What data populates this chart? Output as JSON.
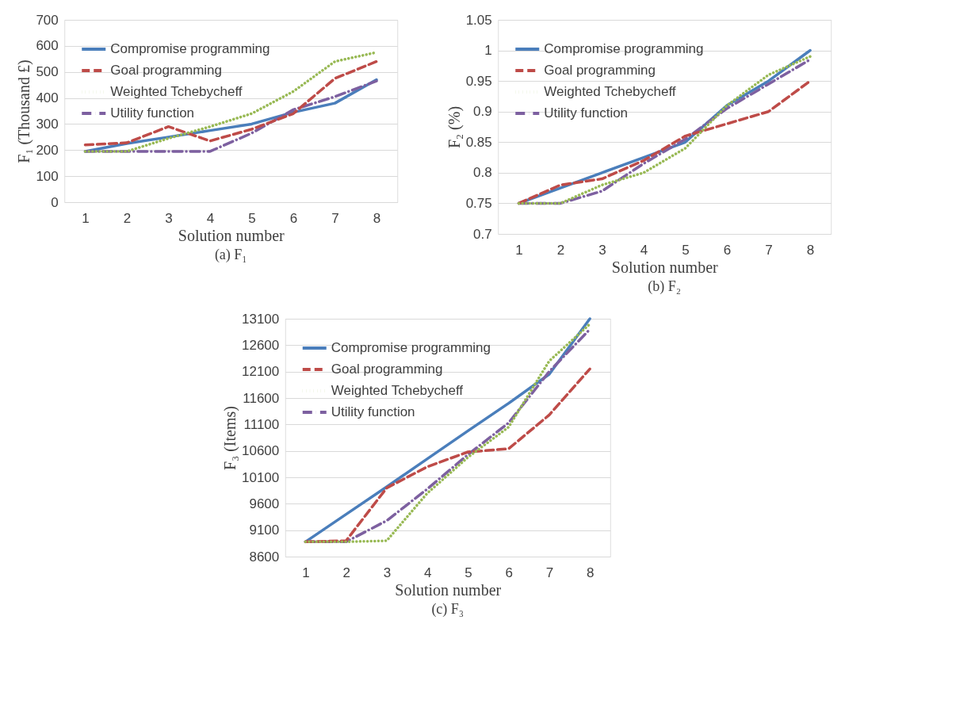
{
  "chart_data": [
    {
      "type": "line",
      "title": "(a) F₁",
      "xlabel": "Solution number",
      "ylabel": "F₁ (Thousand £)",
      "categories": [
        "1",
        "2",
        "3",
        "4",
        "5",
        "6",
        "7",
        "8"
      ],
      "ylim": [
        0,
        700
      ],
      "yticks": [
        0,
        100,
        200,
        300,
        400,
        500,
        600,
        700
      ],
      "grid": "y",
      "legend": "top left",
      "marker": "none",
      "series": [
        {
          "name": "Compromise programming",
          "color": "#4a7ebb",
          "line_style": "solid",
          "values": [
            195,
            225,
            250,
            275,
            300,
            345,
            380,
            470
          ]
        },
        {
          "name": "Goal programming",
          "color": "#be4b48",
          "line_style": "dashed",
          "values": [
            220,
            228,
            290,
            235,
            280,
            340,
            475,
            540
          ]
        },
        {
          "name": "Weighted Tchebycheff",
          "color": "#98b954",
          "line_style": "dotted",
          "values": [
            195,
            195,
            245,
            290,
            340,
            425,
            540,
            575
          ]
        },
        {
          "name": "Utility function",
          "color": "#7d60a0",
          "line_style": "dashdot",
          "values": [
            195,
            195,
            195,
            195,
            265,
            355,
            405,
            465
          ]
        }
      ]
    },
    {
      "type": "line",
      "title": "(b) F₂",
      "xlabel": "Solution number",
      "ylabel": "F₂ (%)",
      "categories": [
        "1",
        "2",
        "3",
        "4",
        "5",
        "6",
        "7",
        "8"
      ],
      "ylim": [
        0.7,
        1.05
      ],
      "yticks": [
        0.7,
        0.75,
        0.8,
        0.85,
        0.9,
        0.95,
        1,
        1.05
      ],
      "grid": "y",
      "legend": "top left",
      "marker": "none",
      "series": [
        {
          "name": "Compromise programming",
          "color": "#4a7ebb",
          "line_style": "solid",
          "values": [
            0.75,
            0.775,
            0.8,
            0.825,
            0.85,
            0.91,
            0.95,
            1.0
          ]
        },
        {
          "name": "Goal programming",
          "color": "#be4b48",
          "line_style": "dashed",
          "values": [
            0.75,
            0.78,
            0.79,
            0.82,
            0.86,
            0.88,
            0.9,
            0.95
          ]
        },
        {
          "name": "Weighted Tchebycheff",
          "color": "#98b954",
          "line_style": "dotted",
          "values": [
            0.75,
            0.75,
            0.78,
            0.8,
            0.84,
            0.91,
            0.96,
            0.99
          ]
        },
        {
          "name": "Utility function",
          "color": "#7d60a0",
          "line_style": "dashdot",
          "values": [
            0.75,
            0.75,
            0.77,
            0.815,
            0.855,
            0.905,
            0.945,
            0.985
          ]
        }
      ]
    },
    {
      "type": "line",
      "title": "(c) F₃",
      "xlabel": "Solution number",
      "ylabel": "F₃ (Items)",
      "categories": [
        "1",
        "2",
        "3",
        "4",
        "5",
        "6",
        "7",
        "8"
      ],
      "ylim": [
        8600,
        13100
      ],
      "yticks": [
        8600,
        9100,
        9600,
        10100,
        10600,
        11100,
        11600,
        12100,
        12600,
        13100
      ],
      "grid": "y",
      "legend": "top left",
      "marker": "none",
      "series": [
        {
          "name": "Compromise programming",
          "color": "#4a7ebb",
          "line_style": "solid",
          "values": [
            8880,
            9400,
            9920,
            10450,
            10980,
            11500,
            12050,
            13100
          ]
        },
        {
          "name": "Goal programming",
          "color": "#be4b48",
          "line_style": "dashed",
          "values": [
            8880,
            8900,
            9900,
            10300,
            10580,
            10640,
            11280,
            12150
          ]
        },
        {
          "name": "Weighted Tchebycheff",
          "color": "#98b954",
          "line_style": "dotted",
          "values": [
            8880,
            8880,
            8900,
            9800,
            10480,
            11050,
            12300,
            13000
          ]
        },
        {
          "name": "Utility function",
          "color": "#7d60a0",
          "line_style": "dashdot",
          "values": [
            8880,
            8880,
            9280,
            9880,
            10530,
            11130,
            12100,
            12900
          ]
        }
      ]
    }
  ]
}
